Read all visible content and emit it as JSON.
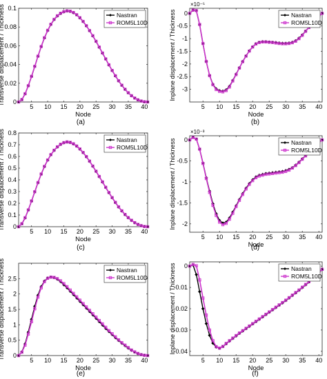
{
  "chart_data": [
    {
      "type": "line",
      "panel_label": "(a)",
      "xlabel": "Node",
      "ylabel": "Transverse displacement / Thickness",
      "exponent_label": "",
      "xlim": [
        1,
        41
      ],
      "ylim": [
        0,
        0.1
      ],
      "xticks": [
        5,
        10,
        15,
        20,
        25,
        30,
        35,
        40
      ],
      "yticks": [
        0,
        0.02,
        0.04,
        0.06,
        0.08,
        0.1
      ],
      "ytick_labels": [
        "0",
        "0.02",
        "0.04",
        "0.06",
        "0.08",
        "0.1"
      ],
      "legend_position": "top-right",
      "x": [
        1,
        2,
        3,
        4,
        5,
        6,
        7,
        8,
        9,
        10,
        11,
        12,
        13,
        14,
        15,
        16,
        17,
        18,
        19,
        20,
        21,
        22,
        23,
        24,
        25,
        26,
        27,
        28,
        29,
        30,
        31,
        32,
        33,
        34,
        35,
        36,
        37,
        38,
        39,
        40,
        41
      ],
      "series": [
        {
          "name": "Nastran",
          "color": "#000000",
          "marker": "diamond",
          "values": [
            0,
            0.0025,
            0.0087,
            0.0172,
            0.0272,
            0.0379,
            0.0487,
            0.059,
            0.0683,
            0.0762,
            0.0827,
            0.0879,
            0.0917,
            0.0944,
            0.0961,
            0.097,
            0.0966,
            0.0952,
            0.0929,
            0.0897,
            0.0858,
            0.0812,
            0.076,
            0.0705,
            0.0646,
            0.0584,
            0.0521,
            0.0458,
            0.0395,
            0.0335,
            0.0278,
            0.0225,
            0.0177,
            0.0134,
            0.0097,
            0.0066,
            0.0041,
            0.0022,
            0.0009,
            0.0002,
            0
          ]
        },
        {
          "name": "ROM5L10D",
          "color": "#cc33cc",
          "marker": "square",
          "values": [
            0,
            0.0026,
            0.0088,
            0.0174,
            0.0274,
            0.0381,
            0.0489,
            0.0592,
            0.0686,
            0.0765,
            0.083,
            0.0882,
            0.092,
            0.0947,
            0.0964,
            0.0973,
            0.0969,
            0.0955,
            0.0931,
            0.0899,
            0.086,
            0.0814,
            0.0762,
            0.0707,
            0.0648,
            0.0586,
            0.0523,
            0.046,
            0.0397,
            0.0337,
            0.028,
            0.0227,
            0.0179,
            0.0136,
            0.0099,
            0.0067,
            0.0042,
            0.0023,
            0.001,
            0.0002,
            0
          ]
        }
      ]
    },
    {
      "type": "line",
      "panel_label": "(b)",
      "xlabel": "Node",
      "ylabel": "Inplane displacement / Thickness",
      "exponent_label": "×10⁻⁵",
      "xlim": [
        1,
        41
      ],
      "ylim": [
        -3.5,
        0.2
      ],
      "xticks": [
        5,
        10,
        15,
        20,
        25,
        30,
        35,
        40
      ],
      "yticks": [
        0,
        -0.5,
        -1,
        -1.5,
        -2,
        -2.5,
        -3
      ],
      "ytick_labels": [
        "0",
        "-0.5",
        "-1",
        "-1.5",
        "-2",
        "-2.5",
        "-3"
      ],
      "legend_position": "top-right",
      "x": [
        1,
        2,
        3,
        4,
        5,
        6,
        7,
        8,
        9,
        10,
        11,
        12,
        13,
        14,
        15,
        16,
        17,
        18,
        19,
        20,
        21,
        22,
        23,
        24,
        25,
        26,
        27,
        28,
        29,
        30,
        31,
        32,
        33,
        34,
        35,
        36,
        37,
        38,
        39,
        40,
        41
      ],
      "series": [
        {
          "name": "Nastran",
          "color": "#000000",
          "marker": "diamond",
          "values": [
            0,
            0.12,
            0.1,
            -0.45,
            -1.2,
            -1.9,
            -2.45,
            -2.8,
            -2.98,
            -3.05,
            -3.07,
            -3.02,
            -2.88,
            -2.65,
            -2.4,
            -2.15,
            -1.9,
            -1.68,
            -1.48,
            -1.32,
            -1.2,
            -1.14,
            -1.12,
            -1.12,
            -1.13,
            -1.14,
            -1.15,
            -1.17,
            -1.18,
            -1.18,
            -1.17,
            -1.14,
            -1.08,
            -0.98,
            -0.85,
            -0.7,
            -0.55,
            -0.4,
            -0.25,
            -0.12,
            0
          ]
        },
        {
          "name": "ROM5L10D",
          "color": "#cc33cc",
          "marker": "square",
          "values": [
            0,
            0.13,
            0.11,
            -0.44,
            -1.19,
            -1.9,
            -2.46,
            -2.82,
            -3.01,
            -3.08,
            -3.1,
            -3.05,
            -2.91,
            -2.67,
            -2.42,
            -2.16,
            -1.91,
            -1.69,
            -1.49,
            -1.33,
            -1.21,
            -1.15,
            -1.13,
            -1.13,
            -1.14,
            -1.15,
            -1.17,
            -1.19,
            -1.2,
            -1.2,
            -1.19,
            -1.16,
            -1.1,
            -1.0,
            -0.87,
            -0.71,
            -0.56,
            -0.41,
            -0.26,
            -0.12,
            0
          ]
        }
      ]
    },
    {
      "type": "line",
      "panel_label": "(c)",
      "xlabel": "Node",
      "ylabel": "Transverse displacement / Thickness",
      "exponent_label": "",
      "xlim": [
        1,
        41
      ],
      "ylim": [
        0,
        0.8
      ],
      "xticks": [
        5,
        10,
        15,
        20,
        25,
        30,
        35,
        40
      ],
      "yticks": [
        0,
        0.1,
        0.2,
        0.3,
        0.4,
        0.5,
        0.6,
        0.7,
        0.8
      ],
      "ytick_labels": [
        "0",
        "0.1",
        "0.2",
        "0.3",
        "0.4",
        "0.5",
        "0.6",
        "0.7",
        "0.8"
      ],
      "legend_position": "top-right",
      "x": [
        1,
        2,
        3,
        4,
        5,
        6,
        7,
        8,
        9,
        10,
        11,
        12,
        13,
        14,
        15,
        16,
        17,
        18,
        19,
        20,
        21,
        22,
        23,
        24,
        25,
        26,
        27,
        28,
        29,
        30,
        31,
        32,
        33,
        34,
        35,
        36,
        37,
        38,
        39,
        40,
        41
      ],
      "series": [
        {
          "name": "Nastran",
          "color": "#000000",
          "marker": "diamond",
          "values": [
            0,
            0.025,
            0.075,
            0.142,
            0.218,
            0.297,
            0.375,
            0.448,
            0.513,
            0.568,
            0.614,
            0.651,
            0.68,
            0.702,
            0.716,
            0.722,
            0.718,
            0.706,
            0.687,
            0.662,
            0.632,
            0.597,
            0.558,
            0.516,
            0.472,
            0.427,
            0.381,
            0.335,
            0.29,
            0.247,
            0.206,
            0.168,
            0.134,
            0.103,
            0.076,
            0.053,
            0.034,
            0.019,
            0.008,
            0.002,
            0
          ]
        },
        {
          "name": "ROM5L10D",
          "color": "#cc33cc",
          "marker": "square",
          "values": [
            0,
            0.026,
            0.077,
            0.144,
            0.22,
            0.299,
            0.377,
            0.45,
            0.515,
            0.57,
            0.616,
            0.653,
            0.682,
            0.704,
            0.718,
            0.724,
            0.72,
            0.708,
            0.689,
            0.664,
            0.634,
            0.599,
            0.56,
            0.518,
            0.474,
            0.429,
            0.383,
            0.337,
            0.292,
            0.249,
            0.208,
            0.17,
            0.136,
            0.105,
            0.078,
            0.055,
            0.035,
            0.02,
            0.009,
            0.002,
            0
          ]
        }
      ]
    },
    {
      "type": "line",
      "panel_label": "(d)",
      "xlabel": "Node",
      "ylabel": "Inplane displacement / Thickness",
      "exponent_label": "×10⁻³",
      "xlim": [
        1,
        41
      ],
      "ylim": [
        -2.2,
        0.1
      ],
      "xticks": [
        5,
        10,
        15,
        20,
        25,
        30,
        35,
        40
      ],
      "yticks": [
        0,
        -0.5,
        -1,
        -1.5,
        -2
      ],
      "ytick_labels": [
        "0",
        "-0.5",
        "-1",
        "-1.5",
        "-2"
      ],
      "legend_position": "top-right",
      "x": [
        1,
        2,
        3,
        4,
        5,
        6,
        7,
        8,
        9,
        10,
        11,
        12,
        13,
        14,
        15,
        16,
        17,
        18,
        19,
        20,
        21,
        22,
        23,
        24,
        25,
        26,
        27,
        28,
        29,
        30,
        31,
        32,
        33,
        34,
        35,
        36,
        37,
        38,
        39,
        40,
        41
      ],
      "series": [
        {
          "name": "Nastran",
          "color": "#000000",
          "marker": "diamond",
          "values": [
            0,
            0.06,
            0.02,
            -0.22,
            -0.55,
            -0.9,
            -1.22,
            -1.52,
            -1.76,
            -1.92,
            -1.98,
            -1.96,
            -1.86,
            -1.72,
            -1.57,
            -1.42,
            -1.28,
            -1.15,
            -1.04,
            -0.95,
            -0.88,
            -0.84,
            -0.82,
            -0.8,
            -0.79,
            -0.78,
            -0.77,
            -0.76,
            -0.75,
            -0.73,
            -0.7,
            -0.66,
            -0.6,
            -0.53,
            -0.45,
            -0.37,
            -0.29,
            -0.21,
            -0.13,
            -0.06,
            0
          ]
        },
        {
          "name": "ROM5L10D",
          "color": "#cc33cc",
          "marker": "square",
          "values": [
            0,
            0.06,
            0.02,
            -0.22,
            -0.56,
            -0.92,
            -1.25,
            -1.56,
            -1.8,
            -1.96,
            -2.02,
            -1.99,
            -1.89,
            -1.75,
            -1.59,
            -1.44,
            -1.3,
            -1.17,
            -1.06,
            -0.97,
            -0.9,
            -0.86,
            -0.84,
            -0.82,
            -0.81,
            -0.8,
            -0.79,
            -0.78,
            -0.77,
            -0.75,
            -0.72,
            -0.67,
            -0.61,
            -0.54,
            -0.46,
            -0.38,
            -0.3,
            -0.22,
            -0.14,
            -0.06,
            0
          ]
        }
      ]
    },
    {
      "type": "line",
      "panel_label": "(e)",
      "xlabel": "Node",
      "ylabel": "Transverse displacement / Thickness",
      "exponent_label": "",
      "xlim": [
        1,
        41
      ],
      "ylim": [
        0,
        3
      ],
      "xticks": [
        5,
        10,
        15,
        20,
        25,
        30,
        35,
        40
      ],
      "yticks": [
        0,
        0.5,
        1,
        1.5,
        2,
        2.5
      ],
      "ytick_labels": [
        "0",
        "0.5",
        "1",
        "1.5",
        "2",
        "2.5"
      ],
      "legend_position": "top-right",
      "x": [
        1,
        2,
        3,
        4,
        5,
        6,
        7,
        8,
        9,
        10,
        11,
        12,
        13,
        14,
        15,
        16,
        17,
        18,
        19,
        20,
        21,
        22,
        23,
        24,
        25,
        26,
        27,
        28,
        29,
        30,
        31,
        32,
        33,
        34,
        35,
        36,
        37,
        38,
        39,
        40,
        41
      ],
      "series": [
        {
          "name": "Nastran",
          "color": "#000000",
          "marker": "diamond",
          "values": [
            0,
            0.12,
            0.38,
            0.76,
            1.18,
            1.6,
            1.96,
            2.24,
            2.42,
            2.52,
            2.55,
            2.53,
            2.48,
            2.4,
            2.3,
            2.2,
            2.09,
            1.98,
            1.87,
            1.76,
            1.65,
            1.54,
            1.43,
            1.32,
            1.21,
            1.1,
            0.99,
            0.88,
            0.78,
            0.68,
            0.58,
            0.49,
            0.4,
            0.32,
            0.24,
            0.17,
            0.11,
            0.06,
            0.03,
            0.01,
            0
          ]
        },
        {
          "name": "ROM5L10D",
          "color": "#cc33cc",
          "marker": "square",
          "values": [
            0,
            0.11,
            0.34,
            0.7,
            1.1,
            1.52,
            1.9,
            2.2,
            2.4,
            2.51,
            2.55,
            2.54,
            2.5,
            2.43,
            2.34,
            2.24,
            2.13,
            2.02,
            1.91,
            1.8,
            1.69,
            1.58,
            1.47,
            1.36,
            1.25,
            1.14,
            1.03,
            0.92,
            0.81,
            0.71,
            0.61,
            0.51,
            0.42,
            0.34,
            0.26,
            0.18,
            0.12,
            0.07,
            0.03,
            0.01,
            0
          ]
        }
      ]
    },
    {
      "type": "line",
      "panel_label": "(f)",
      "xlabel": "Node",
      "ylabel": "Inplane displacement / Thickness",
      "exponent_label": "",
      "xlim": [
        1,
        41
      ],
      "ylim": [
        -0.042,
        0.002
      ],
      "xticks": [
        5,
        10,
        15,
        20,
        25,
        30,
        35,
        40
      ],
      "yticks": [
        0,
        -0.01,
        -0.02,
        -0.03,
        -0.04
      ],
      "ytick_labels": [
        "0",
        "-0.01",
        "-0.02",
        "-0.03",
        "-0.04"
      ],
      "legend_position": "top-right",
      "x": [
        1,
        2,
        3,
        4,
        5,
        6,
        7,
        8,
        9,
        10,
        11,
        12,
        13,
        14,
        15,
        16,
        17,
        18,
        19,
        20,
        21,
        22,
        23,
        24,
        25,
        26,
        27,
        28,
        29,
        30,
        31,
        32,
        33,
        34,
        35,
        36,
        37,
        38,
        39,
        40,
        41
      ],
      "series": [
        {
          "name": "Nastran",
          "color": "#000000",
          "marker": "diamond",
          "values": [
            0,
            0.0005,
            -0.004,
            -0.012,
            -0.02,
            -0.027,
            -0.0325,
            -0.0362,
            -0.038,
            -0.0385,
            -0.0378,
            -0.0365,
            -0.0352,
            -0.034,
            -0.0328,
            -0.0316,
            -0.0305,
            -0.0294,
            -0.0283,
            -0.0272,
            -0.0261,
            -0.025,
            -0.0239,
            -0.0228,
            -0.0217,
            -0.0206,
            -0.0195,
            -0.0184,
            -0.0173,
            -0.0162,
            -0.015,
            -0.0138,
            -0.0126,
            -0.0114,
            -0.0101,
            -0.0088,
            -0.0075,
            -0.0061,
            -0.0046,
            -0.0031,
            -0.0016
          ]
        },
        {
          "name": "ROM5L10D",
          "color": "#cc33cc",
          "marker": "square",
          "values": [
            0,
            0.0008,
            0.0002,
            -0.0065,
            -0.015,
            -0.023,
            -0.03,
            -0.035,
            -0.0378,
            -0.0385,
            -0.0377,
            -0.0363,
            -0.035,
            -0.0338,
            -0.0326,
            -0.0314,
            -0.0303,
            -0.0292,
            -0.0281,
            -0.027,
            -0.0259,
            -0.0248,
            -0.0237,
            -0.0226,
            -0.0215,
            -0.0204,
            -0.0193,
            -0.0182,
            -0.0171,
            -0.016,
            -0.0148,
            -0.0136,
            -0.0124,
            -0.0112,
            -0.0099,
            -0.0086,
            -0.0073,
            -0.0059,
            -0.0045,
            -0.003,
            -0.0015
          ]
        }
      ]
    }
  ]
}
